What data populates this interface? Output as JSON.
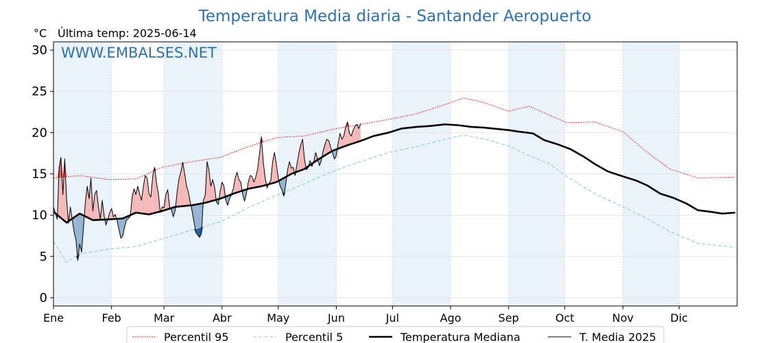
{
  "chart_data": {
    "type": "line",
    "title": "Temperatura Media diaria - Santander Aeropuerto",
    "unit_label": "°C",
    "subtitle": "Última temp: 2025-06-14",
    "watermark": "WWW.EMBALSES.NET",
    "ylim": [
      -1,
      31
    ],
    "yticks": [
      0,
      5,
      10,
      15,
      20,
      25,
      30
    ],
    "months": [
      "Ene",
      "Feb",
      "Mar",
      "Abr",
      "May",
      "Jun",
      "Jul",
      "Ago",
      "Sep",
      "Oct",
      "Nov",
      "Dic"
    ],
    "month_start_days": [
      1,
      32,
      60,
      91,
      121,
      152,
      182,
      213,
      244,
      274,
      305,
      335
    ],
    "days_in_year": 365,
    "grid": true,
    "legend_placement": "bottom-center",
    "colors": {
      "p95": "#e41a1c",
      "p5": "#8ec8dd",
      "median": "#000000",
      "current": "#000000",
      "above_fill": "#f5b8b8",
      "above_strong": "#e8585a",
      "below_fill": "#93b4d2",
      "below_strong": "#1f5f99",
      "band": "#eaf2fa",
      "title": "#2e72aa"
    },
    "series": [
      {
        "name": "Percentil 95",
        "key": "p95",
        "points": [
          [
            1,
            14.5
          ],
          [
            15,
            14.8
          ],
          [
            31,
            14.3
          ],
          [
            45,
            14.4
          ],
          [
            59,
            15.8
          ],
          [
            75,
            16.5
          ],
          [
            90,
            17.0
          ],
          [
            105,
            18.3
          ],
          [
            120,
            19.4
          ],
          [
            135,
            19.6
          ],
          [
            150,
            20.4
          ],
          [
            165,
            21.0
          ],
          [
            180,
            21.6
          ],
          [
            195,
            22.3
          ],
          [
            210,
            23.4
          ],
          [
            220,
            24.2
          ],
          [
            230,
            23.7
          ],
          [
            244,
            22.6
          ],
          [
            255,
            23.2
          ],
          [
            266,
            22.1
          ],
          [
            275,
            21.2
          ],
          [
            290,
            21.3
          ],
          [
            305,
            20.1
          ],
          [
            318,
            17.6
          ],
          [
            330,
            15.6
          ],
          [
            345,
            14.5
          ],
          [
            365,
            14.6
          ]
        ]
      },
      {
        "name": "Percentil 5",
        "key": "p5",
        "points": [
          [
            1,
            6.8
          ],
          [
            8,
            4.3
          ],
          [
            15,
            5.3
          ],
          [
            31,
            5.9
          ],
          [
            45,
            6.2
          ],
          [
            59,
            7.1
          ],
          [
            75,
            8.2
          ],
          [
            90,
            9.2
          ],
          [
            105,
            10.9
          ],
          [
            120,
            12.4
          ],
          [
            135,
            13.8
          ],
          [
            150,
            15.3
          ],
          [
            165,
            16.5
          ],
          [
            180,
            17.6
          ],
          [
            195,
            18.3
          ],
          [
            210,
            19.2
          ],
          [
            220,
            19.7
          ],
          [
            230,
            19.3
          ],
          [
            244,
            18.4
          ],
          [
            255,
            17.2
          ],
          [
            266,
            16.2
          ],
          [
            275,
            14.7
          ],
          [
            290,
            12.6
          ],
          [
            305,
            11.0
          ],
          [
            318,
            9.6
          ],
          [
            330,
            8.0
          ],
          [
            345,
            6.6
          ],
          [
            365,
            6.1
          ]
        ]
      },
      {
        "name": "Temperatura Mediana",
        "key": "median",
        "points": [
          [
            1,
            10.4
          ],
          [
            8,
            9.1
          ],
          [
            15,
            10.2
          ],
          [
            22,
            9.4
          ],
          [
            31,
            9.5
          ],
          [
            38,
            9.6
          ],
          [
            45,
            10.3
          ],
          [
            52,
            10.1
          ],
          [
            59,
            10.5
          ],
          [
            66,
            11.0
          ],
          [
            75,
            11.2
          ],
          [
            82,
            11.5
          ],
          [
            90,
            12.0
          ],
          [
            97,
            12.6
          ],
          [
            105,
            13.2
          ],
          [
            112,
            13.5
          ],
          [
            120,
            14.0
          ],
          [
            128,
            15.0
          ],
          [
            135,
            15.6
          ],
          [
            142,
            16.7
          ],
          [
            150,
            17.8
          ],
          [
            157,
            18.4
          ],
          [
            165,
            19.0
          ],
          [
            172,
            19.6
          ],
          [
            180,
            20.0
          ],
          [
            187,
            20.5
          ],
          [
            195,
            20.7
          ],
          [
            202,
            20.8
          ],
          [
            210,
            21.0
          ],
          [
            217,
            20.9
          ],
          [
            224,
            20.7
          ],
          [
            231,
            20.6
          ],
          [
            244,
            20.3
          ],
          [
            250,
            20.1
          ],
          [
            257,
            19.9
          ],
          [
            263,
            19.1
          ],
          [
            270,
            18.6
          ],
          [
            277,
            18.0
          ],
          [
            284,
            17.1
          ],
          [
            290,
            16.2
          ],
          [
            297,
            15.3
          ],
          [
            305,
            14.7
          ],
          [
            312,
            14.2
          ],
          [
            318,
            13.6
          ],
          [
            325,
            12.6
          ],
          [
            332,
            12.1
          ],
          [
            339,
            11.4
          ],
          [
            345,
            10.6
          ],
          [
            352,
            10.4
          ],
          [
            358,
            10.2
          ],
          [
            365,
            10.3
          ]
        ]
      },
      {
        "name": "T. Media 2025",
        "key": "current",
        "points": [
          [
            1,
            11.0
          ],
          [
            3,
            9.5
          ],
          [
            4,
            15.8
          ],
          [
            5,
            17.0
          ],
          [
            6,
            12.5
          ],
          [
            7,
            16.8
          ],
          [
            8,
            12.0
          ],
          [
            9,
            9.0
          ],
          [
            10,
            11.0
          ],
          [
            11,
            9.5
          ],
          [
            12,
            8.0
          ],
          [
            13,
            7.0
          ],
          [
            14,
            4.5
          ],
          [
            15,
            6.5
          ],
          [
            16,
            5.5
          ],
          [
            17,
            8.5
          ],
          [
            18,
            11.5
          ],
          [
            19,
            13.5
          ],
          [
            20,
            12.0
          ],
          [
            21,
            14.5
          ],
          [
            22,
            10.5
          ],
          [
            23,
            12.5
          ],
          [
            24,
            13.0
          ],
          [
            25,
            11.0
          ],
          [
            26,
            9.5
          ],
          [
            27,
            11.8
          ],
          [
            28,
            10.0
          ],
          [
            29,
            8.8
          ],
          [
            30,
            9.5
          ],
          [
            31,
            10.3
          ],
          [
            32,
            10.8
          ],
          [
            33,
            9.8
          ],
          [
            34,
            10.1
          ],
          [
            35,
            9.3
          ],
          [
            36,
            8.2
          ],
          [
            37,
            7.2
          ],
          [
            38,
            7.5
          ],
          [
            39,
            8.6
          ],
          [
            40,
            9.4
          ],
          [
            41,
            9.6
          ],
          [
            42,
            9.9
          ],
          [
            43,
            12.2
          ],
          [
            44,
            13.2
          ],
          [
            45,
            12.5
          ],
          [
            46,
            13.5
          ],
          [
            47,
            12.6
          ],
          [
            48,
            11.8
          ],
          [
            49,
            13.5
          ],
          [
            50,
            14.8
          ],
          [
            51,
            14.5
          ],
          [
            52,
            12.6
          ],
          [
            53,
            12.2
          ],
          [
            54,
            14.8
          ],
          [
            55,
            15.8
          ],
          [
            56,
            13.9
          ],
          [
            57,
            12.6
          ],
          [
            58,
            10.3
          ],
          [
            59,
            11.0
          ],
          [
            60,
            10.9
          ],
          [
            61,
            12.5
          ],
          [
            62,
            13.1
          ],
          [
            63,
            11.0
          ],
          [
            64,
            10.6
          ],
          [
            65,
            9.8
          ],
          [
            66,
            10.6
          ],
          [
            67,
            12.8
          ],
          [
            68,
            14.4
          ],
          [
            69,
            15.2
          ],
          [
            70,
            16.4
          ],
          [
            71,
            15.1
          ],
          [
            72,
            13.6
          ],
          [
            73,
            12.8
          ],
          [
            74,
            11.6
          ],
          [
            75,
            10.5
          ],
          [
            76,
            9.2
          ],
          [
            77,
            7.9
          ],
          [
            78,
            7.6
          ],
          [
            79,
            7.3
          ],
          [
            80,
            7.8
          ],
          [
            81,
            11.8
          ],
          [
            82,
            12.4
          ],
          [
            83,
            16.5
          ],
          [
            84,
            15.5
          ],
          [
            85,
            13.5
          ],
          [
            86,
            14.3
          ],
          [
            87,
            13.4
          ],
          [
            88,
            11.6
          ],
          [
            89,
            11.3
          ],
          [
            90,
            12.9
          ],
          [
            91,
            14.0
          ],
          [
            92,
            13.5
          ],
          [
            93,
            11.8
          ],
          [
            94,
            11.2
          ],
          [
            95,
            12.0
          ],
          [
            96,
            12.5
          ],
          [
            97,
            13.2
          ],
          [
            98,
            14.5
          ],
          [
            99,
            15.2
          ],
          [
            100,
            14.3
          ],
          [
            101,
            14.0
          ],
          [
            102,
            12.5
          ],
          [
            103,
            11.7
          ],
          [
            104,
            12.6
          ],
          [
            105,
            14.0
          ],
          [
            106,
            14.8
          ],
          [
            107,
            14.7
          ],
          [
            108,
            14.0
          ],
          [
            109,
            14.6
          ],
          [
            110,
            15.6
          ],
          [
            111,
            17.5
          ],
          [
            112,
            19.5
          ],
          [
            113,
            16.5
          ],
          [
            114,
            14.5
          ],
          [
            115,
            13.3
          ],
          [
            116,
            13.8
          ],
          [
            117,
            14.2
          ],
          [
            118,
            16.5
          ],
          [
            119,
            17.6
          ],
          [
            120,
            16.2
          ],
          [
            121,
            14.5
          ],
          [
            122,
            13.5
          ],
          [
            123,
            13.1
          ],
          [
            124,
            12.3
          ],
          [
            125,
            13.7
          ],
          [
            126,
            15.5
          ],
          [
            127,
            16.5
          ],
          [
            128,
            15.7
          ],
          [
            129,
            15.8
          ],
          [
            130,
            14.8
          ],
          [
            131,
            16.2
          ],
          [
            132,
            17.5
          ],
          [
            133,
            18.5
          ],
          [
            134,
            19.2
          ],
          [
            135,
            16.8
          ],
          [
            136,
            15.5
          ],
          [
            137,
            15.8
          ],
          [
            138,
            16.6
          ],
          [
            139,
            15.9
          ],
          [
            140,
            16.5
          ],
          [
            141,
            17.6
          ],
          [
            142,
            16.8
          ],
          [
            143,
            16.0
          ],
          [
            144,
            16.6
          ],
          [
            145,
            17.8
          ],
          [
            146,
            18.6
          ],
          [
            147,
            19.2
          ],
          [
            148,
            19.0
          ],
          [
            149,
            18.2
          ],
          [
            150,
            17.5
          ],
          [
            151,
            16.8
          ],
          [
            152,
            17.2
          ],
          [
            153,
            18.8
          ],
          [
            154,
            19.9
          ],
          [
            155,
            19.2
          ],
          [
            156,
            19.6
          ],
          [
            157,
            20.7
          ],
          [
            158,
            21.3
          ],
          [
            159,
            19.9
          ],
          [
            160,
            19.6
          ],
          [
            161,
            20.3
          ],
          [
            162,
            20.8
          ],
          [
            163,
            21.0
          ],
          [
            164,
            20.5
          ],
          [
            165,
            21.1
          ]
        ]
      }
    ],
    "legend": [
      {
        "label": "Percentil 95",
        "style": "dotted-red"
      },
      {
        "label": "Percentil 5",
        "style": "dashed-lightblue"
      },
      {
        "label": "Temperatura Mediana",
        "style": "thick-black"
      },
      {
        "label": "T. Media 2025",
        "style": "thin-black"
      }
    ]
  }
}
